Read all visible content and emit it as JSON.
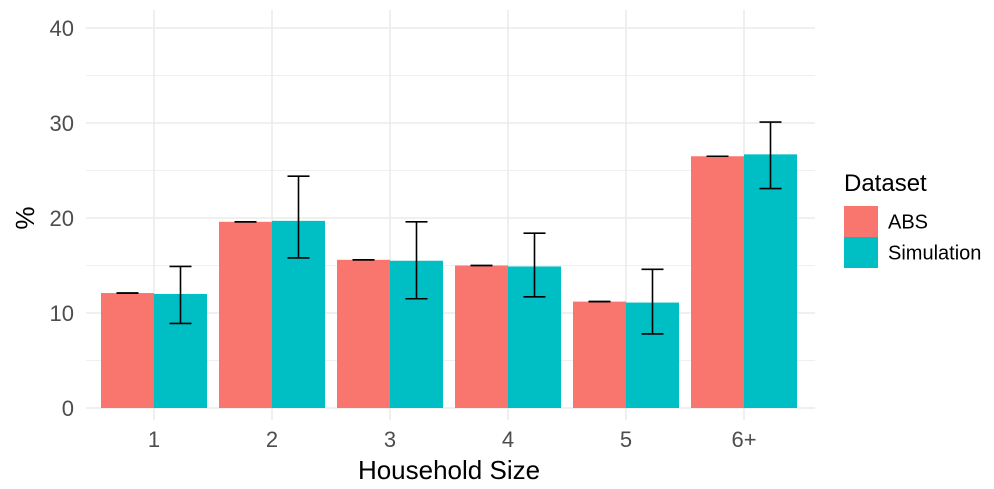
{
  "chart_data": {
    "type": "bar",
    "title": "",
    "xlabel": "Household Size",
    "ylabel": "%",
    "ylim": [
      0,
      40
    ],
    "yticks": [
      0,
      10,
      20,
      30,
      40
    ],
    "grid": true,
    "categories": [
      "1",
      "2",
      "3",
      "4",
      "5",
      "6+"
    ],
    "series": [
      {
        "name": "ABS",
        "color": "#F8766D",
        "values": [
          12.1,
          19.6,
          15.6,
          15.0,
          11.2,
          26.5
        ],
        "error_low": [
          12.1,
          19.6,
          15.6,
          15.0,
          11.2,
          26.5
        ],
        "error_high": [
          12.1,
          19.6,
          15.6,
          15.0,
          11.2,
          26.5
        ]
      },
      {
        "name": "Simulation",
        "color": "#00BFC4",
        "values": [
          12.0,
          19.7,
          15.5,
          14.9,
          11.1,
          26.7
        ],
        "error_low": [
          8.9,
          15.8,
          11.5,
          11.7,
          7.8,
          23.1
        ],
        "error_high": [
          14.9,
          24.4,
          19.6,
          18.4,
          14.6,
          30.1
        ]
      }
    ],
    "legend": {
      "title": "Dataset",
      "position": "right"
    }
  }
}
